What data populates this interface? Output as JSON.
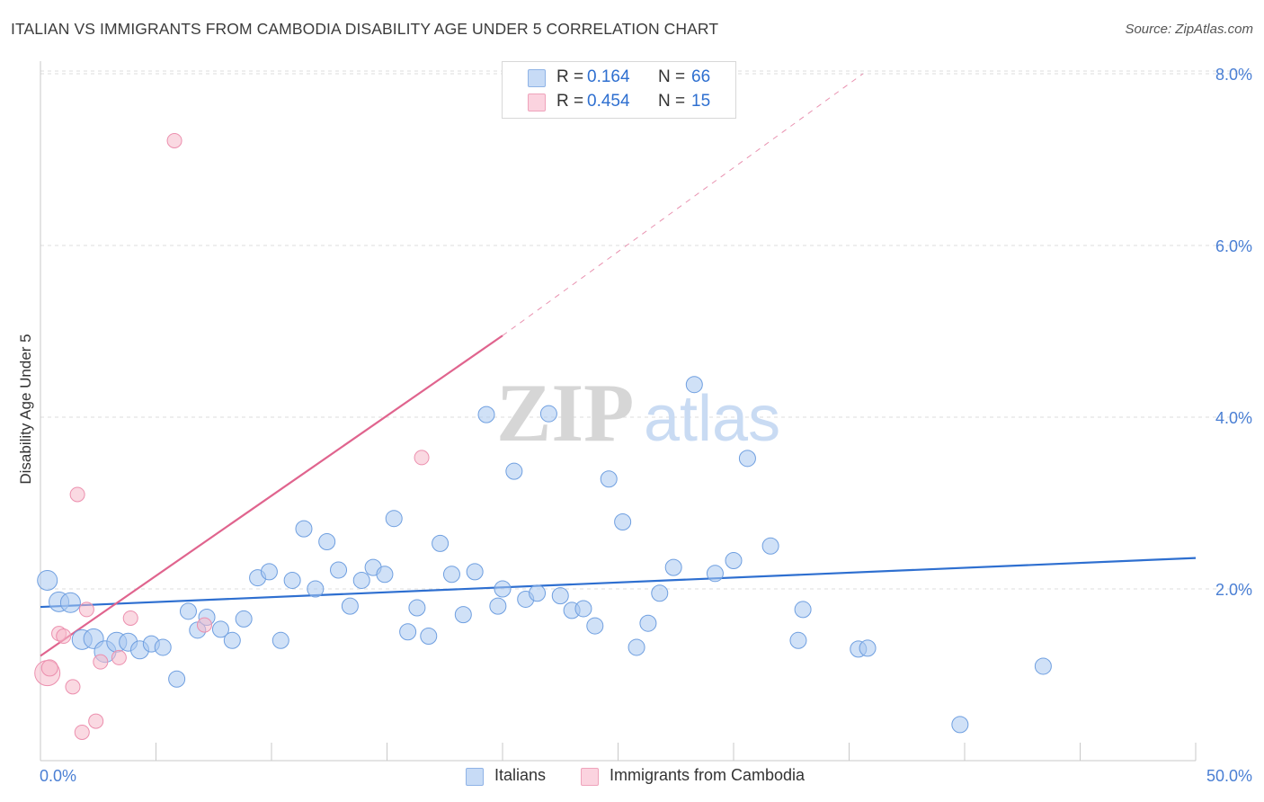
{
  "title": "ITALIAN VS IMMIGRANTS FROM CAMBODIA DISABILITY AGE UNDER 5 CORRELATION CHART",
  "source": "Source: ZipAtlas.com",
  "watermark": {
    "zip": "ZIP",
    "atlas": "atlas"
  },
  "legend": {
    "rows": [
      {
        "r_label": "R =",
        "r_value": "0.164",
        "n_label": "N =",
        "n_value": "66",
        "color": "#a9c8f0"
      },
      {
        "r_label": "R =",
        "r_value": "0.454",
        "n_label": "N =",
        "n_value": "15",
        "color": "#f6b9cb"
      }
    ]
  },
  "bottom_legend": [
    {
      "label": "Italians",
      "color": "#a9c8f0"
    },
    {
      "label": "Immigrants from Cambodia",
      "color": "#f6b9cb"
    }
  ],
  "chart_data": {
    "type": "scatter",
    "title": "ITALIAN VS IMMIGRANTS FROM CAMBODIA DISABILITY AGE UNDER 5 CORRELATION CHART",
    "xlabel": "",
    "ylabel": "Disability Age Under 5",
    "xlim": [
      0,
      50
    ],
    "ylim": [
      0,
      8.2
    ],
    "x_tick_labels": [
      "0.0%",
      "50.0%"
    ],
    "y_ticks": [
      2,
      4,
      6,
      8
    ],
    "y_tick_labels": [
      "2.0%",
      "4.0%",
      "6.0%",
      "8.0%"
    ],
    "grid": true,
    "legend_position": "top-center",
    "series": [
      {
        "name": "Italians",
        "color": "#a9c8f0",
        "stroke": "#6f9fe0",
        "trend": {
          "x": [
            0,
            50
          ],
          "y": [
            1.79,
            2.36
          ],
          "color": "#2e6fd0"
        },
        "points": [
          [
            0.3,
            2.1,
            11
          ],
          [
            0.8,
            1.85,
            11
          ],
          [
            1.3,
            1.84,
            11
          ],
          [
            1.8,
            1.41,
            11
          ],
          [
            2.3,
            1.42,
            11
          ],
          [
            2.8,
            1.27,
            12
          ],
          [
            3.3,
            1.38,
            11
          ],
          [
            3.8,
            1.38,
            10
          ],
          [
            4.3,
            1.29,
            10
          ],
          [
            4.8,
            1.36,
            9
          ],
          [
            5.3,
            1.32,
            9
          ],
          [
            5.9,
            0.95,
            9
          ],
          [
            6.4,
            1.74,
            9
          ],
          [
            6.8,
            1.52,
            9
          ],
          [
            7.2,
            1.67,
            9
          ],
          [
            7.8,
            1.53,
            9
          ],
          [
            8.3,
            1.4,
            9
          ],
          [
            8.8,
            1.65,
            9
          ],
          [
            9.4,
            2.13,
            9
          ],
          [
            9.9,
            2.2,
            9
          ],
          [
            10.4,
            1.4,
            9
          ],
          [
            10.9,
            2.1,
            9
          ],
          [
            11.4,
            2.7,
            9
          ],
          [
            11.9,
            2.0,
            9
          ],
          [
            12.4,
            2.55,
            9
          ],
          [
            12.9,
            2.22,
            9
          ],
          [
            13.4,
            1.8,
            9
          ],
          [
            13.9,
            2.1,
            9
          ],
          [
            14.4,
            2.25,
            9
          ],
          [
            14.9,
            2.17,
            9
          ],
          [
            15.3,
            2.82,
            9
          ],
          [
            15.9,
            1.5,
            9
          ],
          [
            16.3,
            1.78,
            9
          ],
          [
            16.8,
            1.45,
            9
          ],
          [
            17.3,
            2.53,
            9
          ],
          [
            17.8,
            2.17,
            9
          ],
          [
            18.3,
            1.7,
            9
          ],
          [
            18.8,
            2.2,
            9
          ],
          [
            19.3,
            4.03,
            9
          ],
          [
            19.8,
            1.8,
            9
          ],
          [
            20.0,
            2.0,
            9
          ],
          [
            20.5,
            3.37,
            9
          ],
          [
            21.0,
            1.88,
            9
          ],
          [
            21.5,
            1.95,
            9
          ],
          [
            22.0,
            4.04,
            9
          ],
          [
            22.5,
            1.92,
            9
          ],
          [
            23.0,
            1.75,
            9
          ],
          [
            23.5,
            1.77,
            9
          ],
          [
            24.0,
            1.57,
            9
          ],
          [
            24.6,
            3.28,
            9
          ],
          [
            25.2,
            2.78,
            9
          ],
          [
            25.8,
            1.32,
            9
          ],
          [
            26.3,
            1.6,
            9
          ],
          [
            26.8,
            1.95,
            9
          ],
          [
            27.4,
            2.25,
            9
          ],
          [
            28.3,
            4.38,
            9
          ],
          [
            29.2,
            2.18,
            9
          ],
          [
            30.0,
            2.33,
            9
          ],
          [
            30.6,
            3.52,
            9
          ],
          [
            31.6,
            2.5,
            9
          ],
          [
            32.8,
            1.4,
            9
          ],
          [
            33.0,
            1.76,
            9
          ],
          [
            35.4,
            1.3,
            9
          ],
          [
            35.8,
            1.31,
            9
          ],
          [
            39.8,
            0.42,
            9
          ],
          [
            43.4,
            1.1,
            9
          ]
        ]
      },
      {
        "name": "Immigrants from Cambodia",
        "color": "#f6b9cb",
        "stroke": "#ec8fae",
        "trend": {
          "x": [
            0,
            20
          ],
          "y": [
            1.22,
            4.95
          ],
          "dashed_to": [
            35.6,
            8.0
          ],
          "color": "#e0648e"
        },
        "points": [
          [
            0.3,
            1.02,
            14
          ],
          [
            0.4,
            1.08,
            9
          ],
          [
            0.8,
            1.48,
            8
          ],
          [
            1.0,
            1.45,
            8
          ],
          [
            1.6,
            3.1,
            8
          ],
          [
            1.4,
            0.86,
            8
          ],
          [
            1.8,
            0.33,
            8
          ],
          [
            2.0,
            1.76,
            8
          ],
          [
            2.4,
            0.46,
            8
          ],
          [
            2.6,
            1.15,
            8
          ],
          [
            3.4,
            1.2,
            8
          ],
          [
            3.9,
            1.66,
            8
          ],
          [
            5.8,
            7.22,
            8
          ],
          [
            7.1,
            1.58,
            8
          ],
          [
            16.5,
            3.53,
            8
          ]
        ]
      }
    ]
  }
}
